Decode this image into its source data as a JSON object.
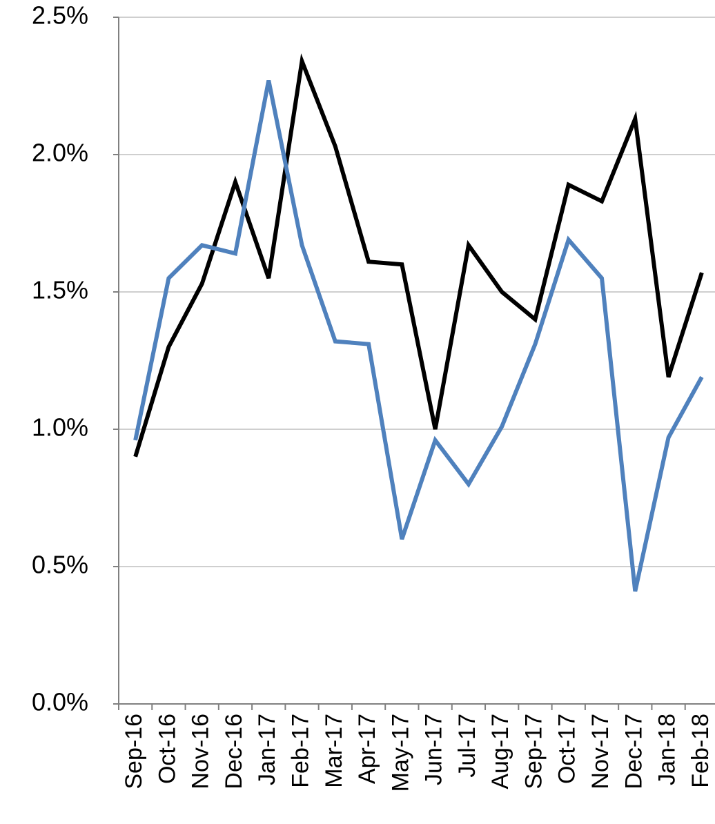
{
  "chart_data": {
    "type": "line",
    "categories": [
      "Sep-16",
      "Oct-16",
      "Nov-16",
      "Dec-16",
      "Jan-17",
      "Feb-17",
      "Mar-17",
      "Apr-17",
      "May-17",
      "Jun-17",
      "Jul-17",
      "Aug-17",
      "Sep-17",
      "Oct-17",
      "Nov-17",
      "Dec-17",
      "Jan-18",
      "Feb-18"
    ],
    "series": [
      {
        "color": "#000000",
        "values": [
          0.9,
          1.3,
          1.53,
          1.9,
          1.55,
          2.34,
          2.03,
          1.61,
          1.6,
          1.0,
          1.67,
          1.5,
          1.4,
          1.89,
          1.83,
          2.13,
          1.19,
          1.57
        ]
      },
      {
        "color": "#4f81bd",
        "values": [
          0.96,
          1.55,
          1.67,
          1.64,
          2.27,
          1.67,
          1.32,
          1.31,
          0.6,
          0.96,
          0.8,
          1.01,
          1.31,
          1.69,
          1.55,
          0.41,
          0.97,
          1.19
        ]
      }
    ],
    "ylim": [
      0,
      2.5
    ],
    "yticks": [
      {
        "value": 0,
        "label": "0.0%"
      },
      {
        "value": 0.5,
        "label": "0.5%"
      },
      {
        "value": 1,
        "label": "1.0%"
      },
      {
        "value": 1.5,
        "label": "1.5%"
      },
      {
        "value": 2,
        "label": "2.0%"
      },
      {
        "value": 2.5,
        "label": "2.5%"
      }
    ],
    "grid": true
  }
}
